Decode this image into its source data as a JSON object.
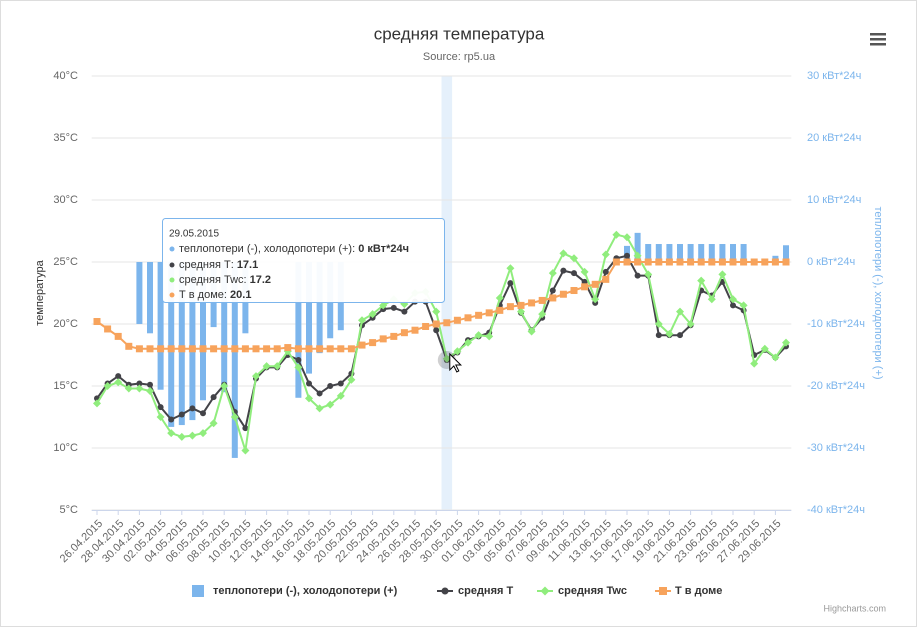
{
  "chart_data": {
    "type": "combo",
    "title": "средняя температура",
    "subtitle": "Source: rp5.ua",
    "y_label": "температура",
    "y2_label": "теплопотери (-), холодопотери (+)",
    "credits": "Highcharts.com",
    "categories": [
      "26.04.2015",
      null,
      "28.04.2015",
      null,
      "30.04.2015",
      null,
      "02.05.2015",
      null,
      "04.05.2015",
      null,
      "06.05.2015",
      null,
      "08.05.2015",
      null,
      "10.05.2015",
      null,
      "12.05.2015",
      null,
      "14.05.2015",
      null,
      "16.05.2015",
      null,
      "18.05.2015",
      null,
      "20.05.2015",
      null,
      "22.05.2015",
      null,
      "24.05.2015",
      null,
      "26.05.2015",
      null,
      "28.05.2015",
      null,
      "30.05.2015",
      null,
      "01.06.2015",
      null,
      "03.06.2015",
      null,
      "05.06.2015",
      null,
      "07.06.2015",
      null,
      "09.06.2015",
      null,
      "11.06.2015",
      null,
      "13.06.2015",
      null,
      "15.06.2015",
      null,
      "17.06.2015",
      null,
      "19.06.2015",
      null,
      "21.06.2015",
      null,
      "23.06.2015",
      null,
      "25.06.2015",
      null,
      "27.06.2015",
      null,
      "29.06.2015",
      null
    ],
    "ylim": [
      5,
      40
    ],
    "yticks": [
      {
        "value": 5,
        "label": "5°C"
      },
      {
        "value": 10,
        "label": "10°C"
      },
      {
        "value": 15,
        "label": "15°C"
      },
      {
        "value": 20,
        "label": "20°C"
      },
      {
        "value": 25,
        "label": "25°C"
      },
      {
        "value": 30,
        "label": "30°C"
      },
      {
        "value": 35,
        "label": "35°C"
      },
      {
        "value": 40,
        "label": "40°C"
      }
    ],
    "y2lim": [
      -40,
      30
    ],
    "y2ticks": [
      {
        "value": -40,
        "label": "-40 кВт*24ч"
      },
      {
        "value": -30,
        "label": "-30 кВт*24ч"
      },
      {
        "value": -20,
        "label": "-20 кВт*24ч"
      },
      {
        "value": -10,
        "label": "-10 кВт*24ч"
      },
      {
        "value": 0,
        "label": "0 кВт*24ч"
      },
      {
        "value": 10,
        "label": "10 кВт*24ч"
      },
      {
        "value": 20,
        "label": "20 кВт*24ч"
      },
      {
        "value": 30,
        "label": "30 кВт*24ч"
      }
    ],
    "grid": true,
    "legend": "bottom",
    "series": [
      {
        "name": "теплопотери (-), холодопотери (+)",
        "type": "column",
        "axis": "y2",
        "color": "#7cb5ec",
        "values": [
          0,
          0,
          0,
          0,
          -10,
          -11.5,
          -20.6,
          -26.6,
          -26.3,
          -25.5,
          -22.3,
          -10.5,
          -21,
          -31.6,
          -11.5,
          0,
          0,
          0,
          0,
          -21.9,
          -18,
          -14.7,
          -12.3,
          -11,
          0,
          0,
          0,
          0,
          0,
          0,
          0,
          0,
          0,
          0,
          0,
          0,
          0,
          0,
          0,
          0,
          0,
          0,
          0,
          0,
          0,
          0,
          0,
          0,
          0,
          0,
          2.6,
          4.7,
          2.9,
          2.9,
          2.9,
          2.9,
          2.9,
          2.9,
          2.9,
          2.9,
          2.9,
          2.9,
          0,
          0,
          1,
          2.7
        ]
      },
      {
        "name": "средняя Т",
        "type": "line",
        "marker": "circle",
        "color": "#434348",
        "values": [
          14.0,
          15.2,
          15.8,
          15.1,
          15.2,
          15.1,
          13.3,
          12.3,
          12.7,
          13.2,
          12.8,
          14.1,
          15.1,
          12.9,
          11.6,
          15.6,
          16.5,
          16.5,
          17.5,
          17.1,
          15.2,
          14.4,
          15.0,
          15.2,
          16.0,
          19.9,
          20.5,
          21.2,
          21.3,
          21.0,
          21.8,
          21.8,
          19.5,
          17.1,
          17.7,
          18.7,
          19.0,
          19.3,
          21.5,
          23.3,
          20.9,
          19.5,
          20.5,
          22.7,
          24.3,
          24.1,
          23.4,
          21.7,
          24.2,
          25.3,
          25.5,
          23.9,
          23.9,
          19.1,
          19.1,
          19.1,
          19.9,
          22.7,
          22.3,
          23.4,
          21.5,
          21.1,
          17.5,
          17.9,
          17.3,
          18.2
        ]
      },
      {
        "name": "средняя Twc",
        "type": "line",
        "marker": "diamond",
        "color": "#90ed7d",
        "values": [
          13.6,
          15.0,
          15.3,
          14.8,
          14.8,
          14.6,
          12.5,
          11.2,
          10.9,
          11.0,
          11.2,
          12.0,
          15.0,
          12.5,
          9.8,
          15.8,
          16.6,
          16.6,
          17.8,
          16.5,
          14.0,
          13.2,
          13.5,
          14.2,
          15.5,
          20.3,
          20.8,
          21.5,
          22.0,
          21.6,
          22.5,
          22.6,
          21.0,
          17.2,
          17.8,
          18.5,
          19.1,
          19.0,
          22.1,
          24.5,
          21.0,
          19.4,
          20.8,
          24.1,
          25.7,
          25.3,
          24.2,
          22.0,
          25.6,
          27.2,
          27.0,
          25.5,
          24.0,
          20.0,
          19.2,
          21.0,
          20.0,
          23.5,
          22.0,
          24.0,
          22.0,
          21.5,
          16.8,
          18.0,
          17.3,
          18.5
        ]
      },
      {
        "name": "Т в доме",
        "type": "line",
        "marker": "square",
        "color": "#f7a35c",
        "values": [
          20.2,
          19.6,
          19.0,
          18.2,
          18.0,
          18.0,
          18.0,
          18.0,
          18.0,
          18.0,
          18.0,
          18.0,
          18.0,
          18.0,
          18.0,
          18.0,
          18.0,
          18.0,
          18.1,
          18.0,
          18.0,
          18.0,
          18.0,
          18.0,
          18.0,
          18.3,
          18.5,
          18.8,
          19.0,
          19.3,
          19.5,
          19.8,
          20.0,
          20.1,
          20.3,
          20.5,
          20.7,
          20.9,
          21.1,
          21.4,
          21.5,
          21.7,
          21.9,
          22.1,
          22.4,
          22.7,
          23.0,
          23.2,
          23.6,
          25.0,
          25.0,
          25.0,
          25.0,
          25.0,
          25.0,
          25.0,
          25.0,
          25.0,
          25.0,
          25.0,
          25.0,
          25.0,
          25.0,
          25.0,
          25.0,
          25.0
        ]
      }
    ],
    "tooltip": {
      "title": "29.05.2015",
      "value_label": "0 кВт*24ч"
    }
  }
}
